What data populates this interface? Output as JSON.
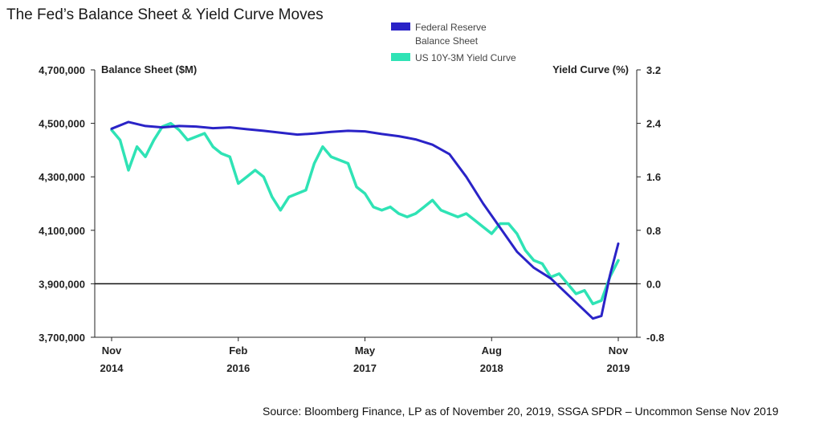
{
  "title": "The Fed’s Balance Sheet & Yield Curve Moves",
  "source": "Source:  Bloomberg Finance, LP as of November 20, 2019, SSGA SPDR – Uncommon Sense Nov 2019",
  "colors": {
    "fed": "#2a23c7",
    "yield": "#2fe3b5",
    "axis": "#222222",
    "zero_line": "#111111"
  },
  "chart_data": {
    "type": "line",
    "left_axis": {
      "title": "Balance Sheet ($M)",
      "ylim": [
        3700000,
        4700000
      ],
      "ticks": [
        3700000,
        3900000,
        4100000,
        4300000,
        4500000,
        4700000
      ],
      "tick_labels": [
        "3,700,000",
        "3,900,000",
        "4,100,000",
        "4,300,000",
        "4,500,000",
        "4,700,000"
      ]
    },
    "right_axis": {
      "title": "Yield Curve (%)",
      "ylim": [
        -0.8,
        3.2
      ],
      "ticks": [
        -0.8,
        0.0,
        0.8,
        1.6,
        2.4,
        3.2
      ],
      "tick_labels": [
        "-0.8",
        "0.0",
        "0.8",
        "1.6",
        "2.4",
        "3.2"
      ]
    },
    "x_axis": {
      "xlim": [
        "2014-11",
        "2019-11"
      ],
      "ticks": [
        {
          "date": "2014-11",
          "month": "Nov",
          "year": "2014"
        },
        {
          "date": "2016-02",
          "month": "Feb",
          "year": "2016"
        },
        {
          "date": "2017-05",
          "month": "May",
          "year": "2017"
        },
        {
          "date": "2018-08",
          "month": "Aug",
          "year": "2018"
        },
        {
          "date": "2019-11",
          "month": "Nov",
          "year": "2019"
        }
      ]
    },
    "series": [
      {
        "name": "Federal Reserve Balance Sheet",
        "legend_lines": [
          "Federal Reserve",
          "Balance Sheet"
        ],
        "axis": "left",
        "x": [
          "2014-11",
          "2015-01",
          "2015-03",
          "2015-05",
          "2015-07",
          "2015-09",
          "2015-11",
          "2016-01",
          "2016-03",
          "2016-05",
          "2016-07",
          "2016-09",
          "2016-11",
          "2017-01",
          "2017-03",
          "2017-05",
          "2017-07",
          "2017-09",
          "2017-11",
          "2018-01",
          "2018-03",
          "2018-05",
          "2018-07",
          "2018-09",
          "2018-11",
          "2019-01",
          "2019-03",
          "2019-05",
          "2019-06",
          "2019-07",
          "2019-08",
          "2019-09",
          "2019-10",
          "2019-11"
        ],
        "y": [
          4480000,
          4505000,
          4490000,
          4485000,
          4490000,
          4488000,
          4482000,
          4485000,
          4478000,
          4472000,
          4465000,
          4458000,
          4462000,
          4468000,
          4472000,
          4470000,
          4460000,
          4452000,
          4440000,
          4420000,
          4385000,
          4300000,
          4200000,
          4110000,
          4020000,
          3960000,
          3920000,
          3860000,
          3830000,
          3800000,
          3770000,
          3780000,
          3930000,
          4050000
        ]
      },
      {
        "name": "US 10Y-3M Yield Curve",
        "legend_lines": [
          "US 10Y-3M Yield Curve"
        ],
        "axis": "right",
        "x": [
          "2014-11",
          "2014-12",
          "2015-01",
          "2015-02",
          "2015-03",
          "2015-04",
          "2015-05",
          "2015-06",
          "2015-07",
          "2015-08",
          "2015-09",
          "2015-10",
          "2015-11",
          "2015-12",
          "2016-01",
          "2016-02",
          "2016-03",
          "2016-04",
          "2016-05",
          "2016-06",
          "2016-07",
          "2016-08",
          "2016-09",
          "2016-10",
          "2016-11",
          "2016-12",
          "2017-01",
          "2017-02",
          "2017-03",
          "2017-04",
          "2017-05",
          "2017-06",
          "2017-07",
          "2017-08",
          "2017-09",
          "2017-10",
          "2017-11",
          "2017-12",
          "2018-01",
          "2018-02",
          "2018-03",
          "2018-04",
          "2018-05",
          "2018-06",
          "2018-07",
          "2018-08",
          "2018-09",
          "2018-10",
          "2018-11",
          "2018-12",
          "2019-01",
          "2019-02",
          "2019-03",
          "2019-04",
          "2019-05",
          "2019-06",
          "2019-07",
          "2019-08",
          "2019-09",
          "2019-10",
          "2019-11"
        ],
        "y": [
          2.3,
          2.15,
          1.7,
          2.05,
          1.9,
          2.15,
          2.35,
          2.4,
          2.3,
          2.15,
          2.2,
          2.25,
          2.05,
          1.95,
          1.9,
          1.5,
          1.6,
          1.7,
          1.6,
          1.3,
          1.1,
          1.3,
          1.35,
          1.4,
          1.8,
          2.05,
          1.9,
          1.85,
          1.8,
          1.45,
          1.35,
          1.15,
          1.1,
          1.15,
          1.05,
          1.0,
          1.05,
          1.15,
          1.25,
          1.1,
          1.05,
          1.0,
          1.05,
          0.95,
          0.85,
          0.75,
          0.9,
          0.9,
          0.75,
          0.5,
          0.35,
          0.3,
          0.1,
          0.15,
          0.0,
          -0.15,
          -0.1,
          -0.3,
          -0.25,
          0.1,
          0.35
        ]
      }
    ]
  }
}
